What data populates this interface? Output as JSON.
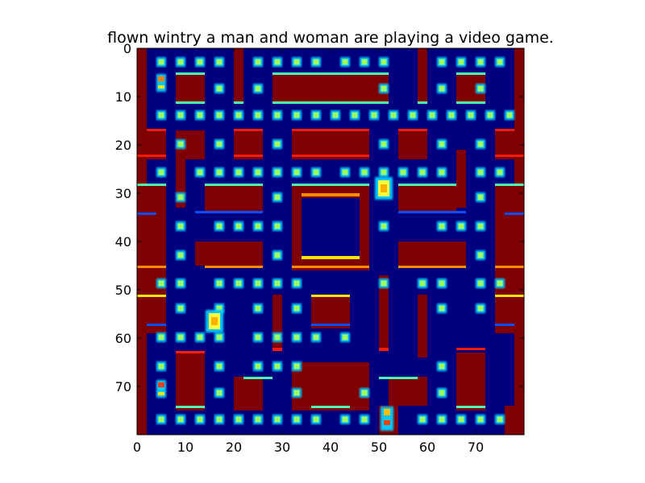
{
  "figure": {
    "title": "flown wintry   a man and woman are playing a video game."
  },
  "axes": {
    "x_range": [
      0,
      80
    ],
    "y_range": [
      0,
      80
    ],
    "x_ticks": [
      {
        "value": 0,
        "label": "0"
      },
      {
        "value": 10,
        "label": "10"
      },
      {
        "value": 20,
        "label": "20"
      },
      {
        "value": 30,
        "label": "30"
      },
      {
        "value": 40,
        "label": "40"
      },
      {
        "value": 50,
        "label": "50"
      },
      {
        "value": 60,
        "label": "60"
      },
      {
        "value": 70,
        "label": "70"
      }
    ],
    "y_ticks": [
      {
        "value": 0,
        "label": "0"
      },
      {
        "value": 10,
        "label": "10"
      },
      {
        "value": 20,
        "label": "20"
      },
      {
        "value": 30,
        "label": "30"
      },
      {
        "value": 40,
        "label": "40"
      },
      {
        "value": 50,
        "label": "50"
      },
      {
        "value": 60,
        "label": "60"
      },
      {
        "value": 70,
        "label": "70"
      }
    ],
    "inverted_y": true
  },
  "colors": {
    "background_maze": "#00007f",
    "wall": "#7f0000",
    "wall_edge_red": "#ff1a00",
    "wall_edge_orange": "#ff8c00",
    "wall_edge_yellow": "#ffe600",
    "wall_edge_cyan": "#4dffb0",
    "wall_edge_blue": "#0050ff",
    "pellet_outer": "#00c8ff",
    "pellet_inner": "#a0ff60",
    "character": "#ffff40"
  },
  "game": {
    "colormap": "jet",
    "characters": [
      {
        "name": "player",
        "x": 16,
        "y": 56.5
      },
      {
        "name": "ghost",
        "x": 51,
        "y": 29
      }
    ]
  }
}
